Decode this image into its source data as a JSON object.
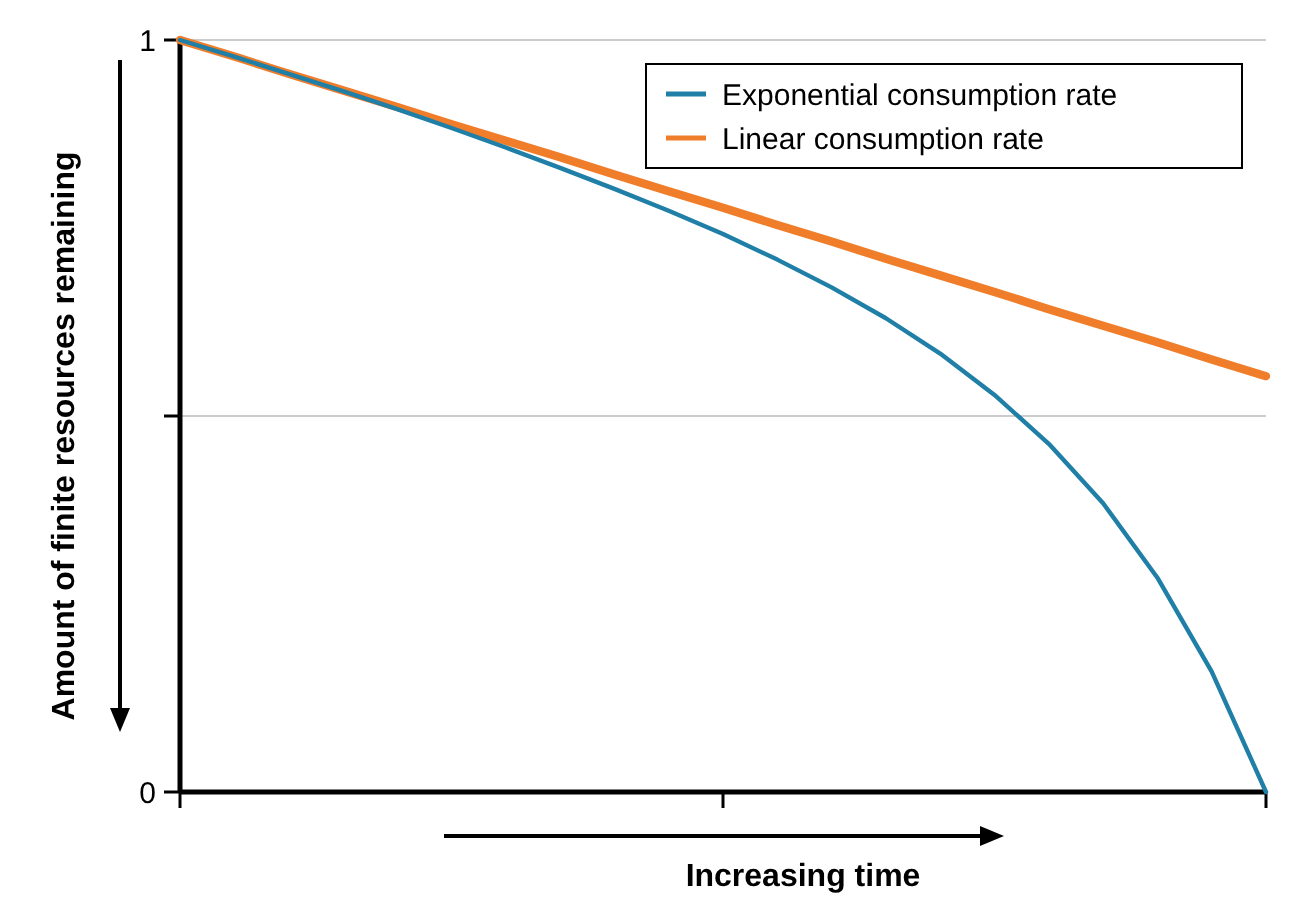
{
  "chart_data": {
    "type": "line",
    "xlabel": "Increasing time",
    "ylabel": "Amount of finite resources remaining",
    "categories": [
      null,
      null,
      null,
      null,
      null,
      null,
      null,
      null,
      null,
      null,
      null,
      null,
      null,
      null,
      null,
      null,
      null,
      null,
      null,
      null,
      null
    ],
    "series": [
      {
        "name": "Exponential consumption rate",
        "color": "#1f7fa6",
        "values": [
          1,
          0.978,
          0.955,
          0.932,
          0.908,
          0.883,
          0.857,
          0.83,
          0.802,
          0.773,
          0.742,
          0.708,
          0.671,
          0.63,
          0.583,
          0.528,
          0.463,
          0.384,
          0.285,
          0.16,
          0
        ]
      },
      {
        "name": "Linear consumption rate",
        "color": "#f07d2a",
        "values": [
          1,
          0.978,
          0.955,
          0.933,
          0.911,
          0.888,
          0.866,
          0.844,
          0.821,
          0.799,
          0.777,
          0.754,
          0.732,
          0.709,
          0.687,
          0.665,
          0.642,
          0.62,
          0.598,
          0.575,
          0.553
        ]
      }
    ],
    "ylim": [
      0,
      1
    ],
    "yticks": [
      0,
      {
        "value": 0.5,
        "label": null
      },
      1
    ],
    "grid": "y",
    "legend": "top right",
    "marker": "none",
    "line_style": "solid"
  }
}
